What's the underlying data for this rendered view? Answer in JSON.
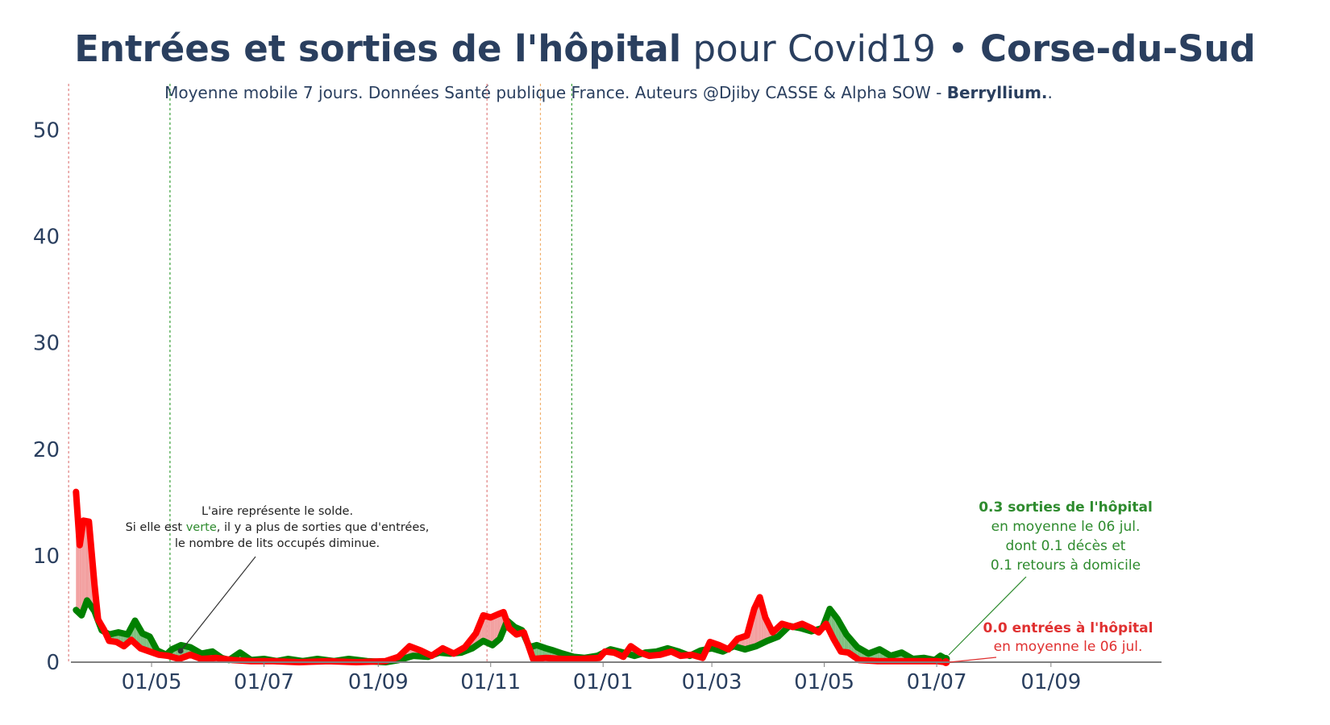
{
  "colors": {
    "exits": "#008000",
    "entries": "#ff0000",
    "fill_positive": "#f2a0a0",
    "fill_negative": "#7fbf7f",
    "text": "#2a3f5f",
    "axis_line": "#808080",
    "vline_red": "#e08080",
    "vline_green": "#3aa03a",
    "vline_orange": "#f0b070",
    "annotation_black": "#333333",
    "exits_text": "#2e8b2e",
    "entries_text": "#e03030"
  },
  "title": {
    "bold_part": "Entrées et sorties de l'hôpital",
    "normal_part": " pour Covid19 • ",
    "region": "Corse-du-Sud"
  },
  "subtitle": {
    "text": "Moyenne mobile 7 jours. Données Santé publique France. Auteurs @Djiby CASSE & Alpha SOW - ",
    "brand": "Berryllium.",
    "end": "."
  },
  "annotation_area": {
    "line1": "L'aire représente le solde.",
    "line2_before": "Si elle est ",
    "line2_green": "verte",
    "line2_after": ", il y a plus de sorties que d'entrées,",
    "line3": "le nombre de lits occupés diminue."
  },
  "annotation_exits": {
    "line1": "0.3 sorties de l'hôpital",
    "line2": "en moyenne le 06 jul.",
    "line3": "dont 0.1 décès et",
    "line4": "0.1 retours à domicile"
  },
  "annotation_entries": {
    "line1": "0.0 entrées à l'hôpital",
    "line2": "en moyenne le 06 jul."
  },
  "chart_data": {
    "type": "line",
    "title": "Entrées et sorties de l'hôpital pour Covid19 • Corse-du-Sud",
    "subtitle": "Moyenne mobile 7 jours. Données Santé publique France. Auteurs @Djiby CASSE & Alpha SOW - Berryllium..",
    "xlabel": "",
    "ylabel": "",
    "x_range": [
      "2020-03-13",
      "2021-10-31"
    ],
    "ylim": [
      0,
      52
    ],
    "y_ticks": [
      0,
      10,
      20,
      30,
      40,
      50
    ],
    "x_ticks": [
      {
        "date": "2020-05-01",
        "label": "01/05"
      },
      {
        "date": "2020-07-01",
        "label": "01/07"
      },
      {
        "date": "2020-09-01",
        "label": "01/09"
      },
      {
        "date": "2020-11-01",
        "label": "01/11"
      },
      {
        "date": "2021-01-01",
        "label": "01/01"
      },
      {
        "date": "2021-03-01",
        "label": "01/03"
      },
      {
        "date": "2021-05-01",
        "label": "01/05"
      },
      {
        "date": "2021-07-01",
        "label": "01/07"
      },
      {
        "date": "2021-09-01",
        "label": "01/09"
      }
    ],
    "vertical_lines": [
      {
        "date": "2020-03-17",
        "color": "red"
      },
      {
        "date": "2020-05-11",
        "color": "green"
      },
      {
        "date": "2020-10-30",
        "color": "red"
      },
      {
        "date": "2020-11-28",
        "color": "orange"
      },
      {
        "date": "2020-12-15",
        "color": "green"
      }
    ],
    "grid": false,
    "series": [
      {
        "name": "Sorties de l'hôpital",
        "color": "#008000",
        "points": [
          [
            "2020-03-21",
            4.9
          ],
          [
            "2020-03-24",
            4.4
          ],
          [
            "2020-03-27",
            5.8
          ],
          [
            "2020-03-31",
            4.8
          ],
          [
            "2020-04-04",
            3.0
          ],
          [
            "2020-04-08",
            2.6
          ],
          [
            "2020-04-13",
            2.8
          ],
          [
            "2020-04-18",
            2.6
          ],
          [
            "2020-04-22",
            3.9
          ],
          [
            "2020-04-26",
            2.7
          ],
          [
            "2020-04-30",
            2.4
          ],
          [
            "2020-05-04",
            1.1
          ],
          [
            "2020-05-09",
            0.7
          ],
          [
            "2020-05-12",
            1.2
          ],
          [
            "2020-05-17",
            1.6
          ],
          [
            "2020-05-22",
            1.4
          ],
          [
            "2020-05-28",
            0.8
          ],
          [
            "2020-06-03",
            1.0
          ],
          [
            "2020-06-08",
            0.4
          ],
          [
            "2020-06-12",
            0.2
          ],
          [
            "2020-06-18",
            0.9
          ],
          [
            "2020-06-24",
            0.2
          ],
          [
            "2020-07-01",
            0.3
          ],
          [
            "2020-07-08",
            0.1
          ],
          [
            "2020-07-14",
            0.3
          ],
          [
            "2020-07-22",
            0.1
          ],
          [
            "2020-07-30",
            0.3
          ],
          [
            "2020-08-08",
            0.1
          ],
          [
            "2020-08-16",
            0.3
          ],
          [
            "2020-08-26",
            0.1
          ],
          [
            "2020-09-05",
            0.0
          ],
          [
            "2020-09-12",
            0.2
          ],
          [
            "2020-09-20",
            0.6
          ],
          [
            "2020-09-28",
            0.5
          ],
          [
            "2020-10-04",
            0.9
          ],
          [
            "2020-10-10",
            0.8
          ],
          [
            "2020-10-16",
            0.9
          ],
          [
            "2020-10-22",
            1.3
          ],
          [
            "2020-10-28",
            2.0
          ],
          [
            "2020-11-02",
            1.6
          ],
          [
            "2020-11-06",
            2.2
          ],
          [
            "2020-11-10",
            3.9
          ],
          [
            "2020-11-14",
            3.3
          ],
          [
            "2020-11-18",
            3.0
          ],
          [
            "2020-11-22",
            1.4
          ],
          [
            "2020-11-26",
            1.6
          ],
          [
            "2020-12-01",
            1.3
          ],
          [
            "2020-12-05",
            1.1
          ],
          [
            "2020-12-10",
            0.8
          ],
          [
            "2020-12-16",
            0.5
          ],
          [
            "2020-12-22",
            0.4
          ],
          [
            "2020-12-29",
            0.6
          ],
          [
            "2021-01-05",
            1.2
          ],
          [
            "2021-01-12",
            0.9
          ],
          [
            "2021-01-18",
            0.6
          ],
          [
            "2021-01-24",
            0.9
          ],
          [
            "2021-01-30",
            1.0
          ],
          [
            "2021-02-05",
            1.3
          ],
          [
            "2021-02-11",
            1.0
          ],
          [
            "2021-02-17",
            0.6
          ],
          [
            "2021-02-23",
            1.1
          ],
          [
            "2021-03-01",
            1.3
          ],
          [
            "2021-03-07",
            1.0
          ],
          [
            "2021-03-13",
            1.5
          ],
          [
            "2021-03-19",
            1.2
          ],
          [
            "2021-03-25",
            1.5
          ],
          [
            "2021-03-31",
            2.0
          ],
          [
            "2021-04-06",
            2.4
          ],
          [
            "2021-04-12",
            3.4
          ],
          [
            "2021-04-18",
            3.2
          ],
          [
            "2021-04-24",
            2.9
          ],
          [
            "2021-04-30",
            3.2
          ],
          [
            "2021-05-04",
            5.0
          ],
          [
            "2021-05-08",
            4.1
          ],
          [
            "2021-05-13",
            2.6
          ],
          [
            "2021-05-19",
            1.4
          ],
          [
            "2021-05-25",
            0.8
          ],
          [
            "2021-05-31",
            1.2
          ],
          [
            "2021-06-06",
            0.6
          ],
          [
            "2021-06-12",
            0.9
          ],
          [
            "2021-06-18",
            0.3
          ],
          [
            "2021-06-24",
            0.4
          ],
          [
            "2021-06-30",
            0.2
          ],
          [
            "2021-07-03",
            0.6
          ],
          [
            "2021-07-06",
            0.3
          ]
        ]
      },
      {
        "name": "Entrées à l'hôpital",
        "color": "#ff0000",
        "points": [
          [
            "2020-03-21",
            16.0
          ],
          [
            "2020-03-23",
            11.0
          ],
          [
            "2020-03-25",
            13.3
          ],
          [
            "2020-03-28",
            13.2
          ],
          [
            "2020-03-31",
            7.3
          ],
          [
            "2020-04-02",
            4.0
          ],
          [
            "2020-04-05",
            3.1
          ],
          [
            "2020-04-08",
            2.0
          ],
          [
            "2020-04-12",
            1.9
          ],
          [
            "2020-04-16",
            1.5
          ],
          [
            "2020-04-20",
            2.1
          ],
          [
            "2020-04-25",
            1.3
          ],
          [
            "2020-04-30",
            1.0
          ],
          [
            "2020-05-05",
            0.7
          ],
          [
            "2020-05-10",
            0.6
          ],
          [
            "2020-05-16",
            0.3
          ],
          [
            "2020-05-22",
            0.7
          ],
          [
            "2020-05-28",
            0.3
          ],
          [
            "2020-06-05",
            0.4
          ],
          [
            "2020-06-14",
            0.2
          ],
          [
            "2020-06-24",
            0.1
          ],
          [
            "2020-07-06",
            0.1
          ],
          [
            "2020-07-20",
            0.0
          ],
          [
            "2020-08-05",
            0.1
          ],
          [
            "2020-08-20",
            0.0
          ],
          [
            "2020-09-05",
            0.1
          ],
          [
            "2020-09-12",
            0.5
          ],
          [
            "2020-09-18",
            1.5
          ],
          [
            "2020-09-24",
            1.1
          ],
          [
            "2020-09-30",
            0.6
          ],
          [
            "2020-10-06",
            1.3
          ],
          [
            "2020-10-12",
            0.8
          ],
          [
            "2020-10-18",
            1.4
          ],
          [
            "2020-10-24",
            2.7
          ],
          [
            "2020-10-28",
            4.4
          ],
          [
            "2020-11-01",
            4.2
          ],
          [
            "2020-11-05",
            4.5
          ],
          [
            "2020-11-08",
            4.7
          ],
          [
            "2020-11-11",
            3.2
          ],
          [
            "2020-11-15",
            2.6
          ],
          [
            "2020-11-19",
            2.8
          ],
          [
            "2020-11-24",
            0.3
          ],
          [
            "2020-12-01",
            0.4
          ],
          [
            "2020-12-10",
            0.3
          ],
          [
            "2020-12-20",
            0.3
          ],
          [
            "2020-12-30",
            0.4
          ],
          [
            "2021-01-02",
            1.0
          ],
          [
            "2021-01-07",
            0.9
          ],
          [
            "2021-01-12",
            0.5
          ],
          [
            "2021-01-16",
            1.5
          ],
          [
            "2021-01-21",
            0.9
          ],
          [
            "2021-01-26",
            0.6
          ],
          [
            "2021-02-01",
            0.7
          ],
          [
            "2021-02-07",
            1.0
          ],
          [
            "2021-02-12",
            0.6
          ],
          [
            "2021-02-18",
            0.7
          ],
          [
            "2021-02-24",
            0.4
          ],
          [
            "2021-02-28",
            1.9
          ],
          [
            "2021-03-05",
            1.6
          ],
          [
            "2021-03-10",
            1.2
          ],
          [
            "2021-03-15",
            2.2
          ],
          [
            "2021-03-20",
            2.5
          ],
          [
            "2021-03-24",
            5.0
          ],
          [
            "2021-03-27",
            6.1
          ],
          [
            "2021-03-30",
            4.2
          ],
          [
            "2021-04-03",
            2.8
          ],
          [
            "2021-04-08",
            3.6
          ],
          [
            "2021-04-14",
            3.3
          ],
          [
            "2021-04-19",
            3.6
          ],
          [
            "2021-04-24",
            3.2
          ],
          [
            "2021-04-28",
            2.8
          ],
          [
            "2021-05-02",
            3.6
          ],
          [
            "2021-05-06",
            2.2
          ],
          [
            "2021-05-10",
            1.0
          ],
          [
            "2021-05-14",
            0.9
          ],
          [
            "2021-05-20",
            0.2
          ],
          [
            "2021-05-30",
            0.1
          ],
          [
            "2021-06-10",
            0.1
          ],
          [
            "2021-06-22",
            0.1
          ],
          [
            "2021-07-01",
            0.1
          ],
          [
            "2021-07-06",
            0.0
          ]
        ]
      }
    ]
  }
}
